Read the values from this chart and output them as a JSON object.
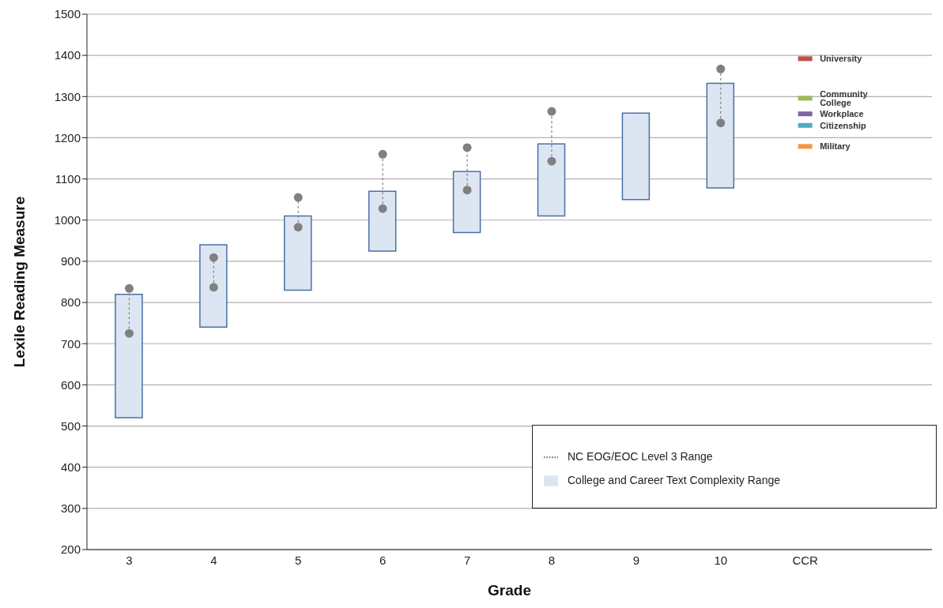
{
  "chart_data": {
    "type": "bar",
    "xlabel": "Grade",
    "ylabel": "Lexile Reading Measure",
    "categories": [
      "3",
      "4",
      "5",
      "6",
      "7",
      "8",
      "9",
      "10",
      "CCR",
      null
    ],
    "series": [
      {
        "name": "NC EOG/EOC Level 3 Range",
        "type": "scatter",
        "color": "#808080",
        "marker": "circle",
        "line_style": "dashed",
        "values": [
          834,
          909,
          1055,
          1160,
          1176,
          1264,
          null,
          1367,
          null,
          null
        ]
      },
      {
        "type": "scatter",
        "color": "#808080",
        "marker": "circle",
        "values": [
          725,
          837,
          983,
          1028,
          1073,
          1143,
          null,
          1236,
          null,
          null
        ]
      },
      {
        "name": "College and Career Text Complexity Range",
        "color": "#dce6f2",
        "base": [
          520,
          740,
          830,
          925,
          970,
          1010,
          1050,
          1078,
          null,
          null
        ],
        "values": [
          300,
          200,
          180,
          145,
          148,
          175,
          210,
          254,
          null,
          null
        ]
      },
      {
        "name": "University",
        "type": "scatter",
        "color": "#c0504d",
        "values": [
          null,
          null,
          null,
          null,
          null,
          null,
          null,
          null,
          1392,
          null
        ]
      },
      {
        "name": "Community College",
        "type": "scatter",
        "color": "#9bbb59",
        "values": [
          null,
          null,
          null,
          null,
          null,
          null,
          null,
          null,
          1296,
          null
        ]
      },
      {
        "name": "Workplace",
        "type": "scatter",
        "color": "#8064a2",
        "values": [
          null,
          null,
          null,
          null,
          null,
          null,
          null,
          null,
          1258,
          null
        ]
      },
      {
        "name": "Citizenship",
        "type": "scatter",
        "color": "#4bacc6",
        "values": [
          null,
          null,
          null,
          null,
          null,
          null,
          null,
          null,
          1230,
          null
        ]
      },
      {
        "name": "Military",
        "type": "scatter",
        "color": "#f79646",
        "values": [
          null,
          null,
          null,
          null,
          null,
          null,
          null,
          null,
          1179,
          null
        ]
      }
    ],
    "ylim": [
      200,
      1500
    ],
    "yticks": [
      200,
      300,
      400,
      500,
      600,
      700,
      800,
      900,
      1000,
      1100,
      1200,
      1300,
      1400,
      1500
    ],
    "grid": "y",
    "legend": "bottom right"
  }
}
